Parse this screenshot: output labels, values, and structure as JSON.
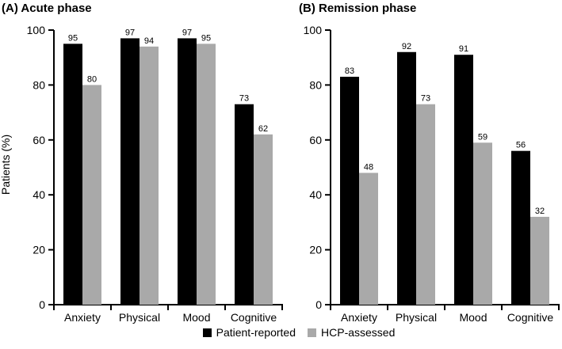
{
  "figure": {
    "panel_a_title": "(A) Acute phase",
    "panel_b_title": "(B) Remission phase",
    "colors": {
      "patient_reported": "#000000",
      "hcp_assessed": "#a9a9a9",
      "axis": "#000000",
      "background": "#ffffff"
    },
    "legend": [
      {
        "label": "Patient-reported",
        "color": "#000000"
      },
      {
        "label": "HCP-assessed",
        "color": "#a9a9a9"
      }
    ]
  },
  "chart_data": [
    {
      "type": "bar",
      "title": "(A) Acute phase",
      "categories": [
        "Anxiety",
        "Physical",
        "Mood",
        "Cognitive"
      ],
      "series": [
        {
          "name": "Patient-reported",
          "color": "#000000",
          "values": [
            95,
            97,
            97,
            73
          ]
        },
        {
          "name": "HCP-assessed",
          "color": "#a9a9a9",
          "values": [
            80,
            94,
            95,
            62
          ]
        }
      ],
      "xlabel": "",
      "ylabel": "Patients (%)",
      "ylim": [
        0,
        100
      ],
      "yticks": [
        0,
        20,
        40,
        60,
        80,
        100
      ],
      "grid": false,
      "value_labels": true,
      "legend_position": "bottom-center"
    },
    {
      "type": "bar",
      "title": "(B) Remission phase",
      "categories": [
        "Anxiety",
        "Physical",
        "Mood",
        "Cognitive"
      ],
      "series": [
        {
          "name": "Patient-reported",
          "color": "#000000",
          "values": [
            83,
            92,
            91,
            56
          ]
        },
        {
          "name": "HCP-assessed",
          "color": "#a9a9a9",
          "values": [
            48,
            73,
            59,
            32
          ]
        }
      ],
      "xlabel": "",
      "ylabel": "",
      "ylim": [
        0,
        100
      ],
      "yticks": [
        0,
        20,
        40,
        60,
        80,
        100
      ],
      "grid": false,
      "value_labels": true,
      "legend_position": "bottom-center"
    }
  ]
}
